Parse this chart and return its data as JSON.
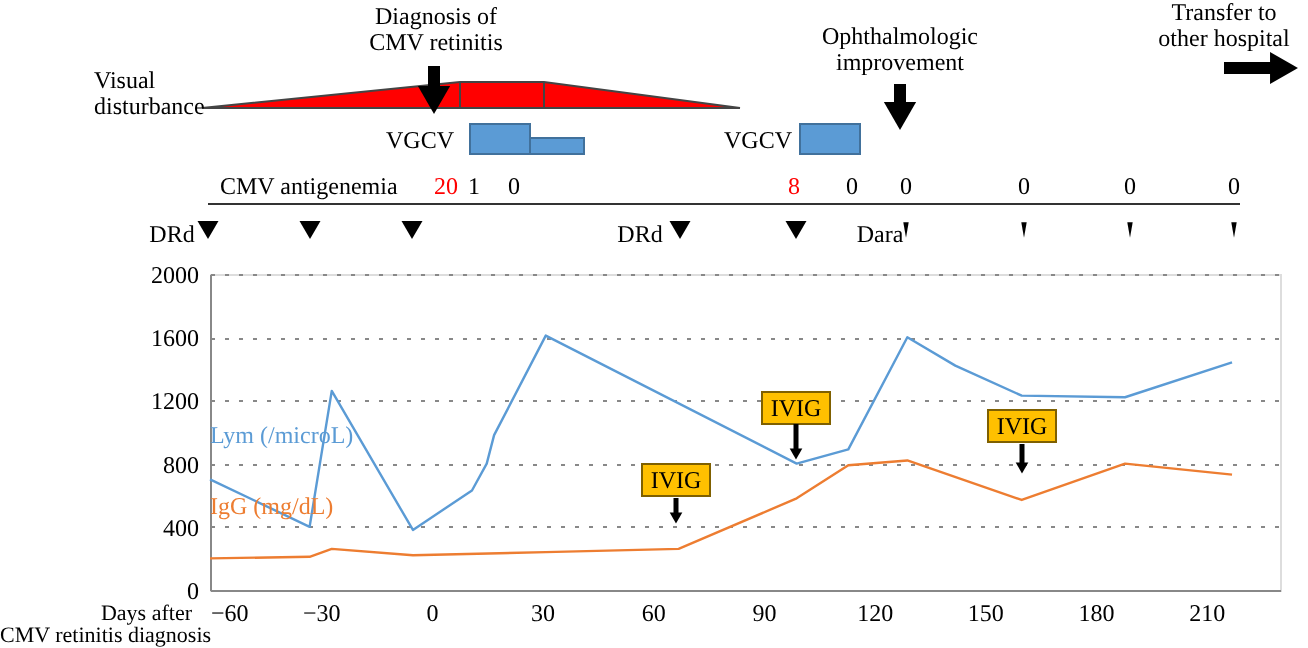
{
  "chart_data": {
    "type": "line",
    "xlabel": "Days after CMV retinitis diagnosis",
    "xlim": [
      -60,
      230
    ],
    "xticks": [
      -60,
      -30,
      0,
      30,
      60,
      90,
      120,
      150,
      180,
      210
    ],
    "ylim": [
      0,
      2000
    ],
    "yticks": [
      0,
      400,
      800,
      1200,
      1600,
      2000
    ],
    "grid": "y",
    "legend": false,
    "marker": "none",
    "line_style": "solid",
    "series": [
      {
        "name": "Lym (/microL)",
        "color": "#5b9bd5",
        "x": [
          -60,
          -33,
          -27,
          -5,
          11,
          15,
          17,
          31,
          99,
          113,
          129,
          142,
          160,
          188,
          217
        ],
        "values": [
          700,
          400,
          1260,
          380,
          630,
          800,
          980,
          1610,
          800,
          890,
          1600,
          1420,
          1230,
          1220,
          1440
        ]
      },
      {
        "name": "IgG (mg/dL)",
        "color": "#ed7d31",
        "x": [
          -60,
          -33,
          -27,
          -5,
          31,
          67,
          99,
          113,
          129,
          160,
          188,
          217
        ],
        "values": [
          200,
          210,
          260,
          220,
          240,
          260,
          580,
          790,
          820,
          570,
          800,
          730
        ]
      }
    ],
    "annotations": [
      "Diagnosis of CMV retinitis",
      "Visual disturbance",
      "Ophthalmologic improvement",
      "Transfer to other hospital",
      "VGCV",
      "VGCV",
      "CMV antigenemia",
      "20",
      "1",
      "0",
      "8",
      "0",
      "0",
      "0",
      "0",
      "0",
      "DRd",
      "DRd",
      "Dara",
      "IVIG",
      "IVIG",
      "IVIG"
    ]
  }
}
